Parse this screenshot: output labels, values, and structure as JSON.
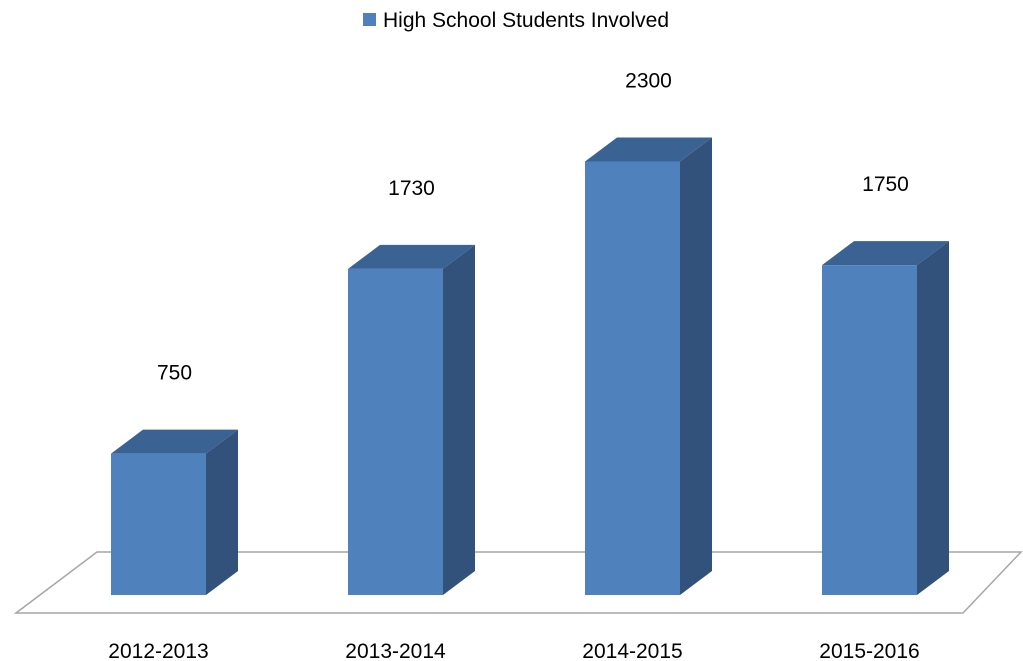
{
  "chart_data": {
    "type": "bar",
    "style": "3d-column",
    "title": "",
    "xlabel": "",
    "ylabel": "",
    "categories": [
      "2012-2013",
      "2013-2014",
      "2014-2015",
      "2015-2016"
    ],
    "series": [
      {
        "name": "High School Students Involved",
        "values": [
          750,
          1730,
          2300,
          1750
        ]
      }
    ],
    "value_labels": [
      "750",
      "1730",
      "2300",
      "1750"
    ],
    "legend_position": "top",
    "grid": false,
    "show_y_axis": false,
    "ylim": [
      0,
      2500
    ]
  },
  "colors": {
    "bar_front": "#4F81BD",
    "bar_top": "#3A6293",
    "bar_side": "#32527B",
    "floor_stroke": "#A6A6A6",
    "text": "#000000"
  }
}
